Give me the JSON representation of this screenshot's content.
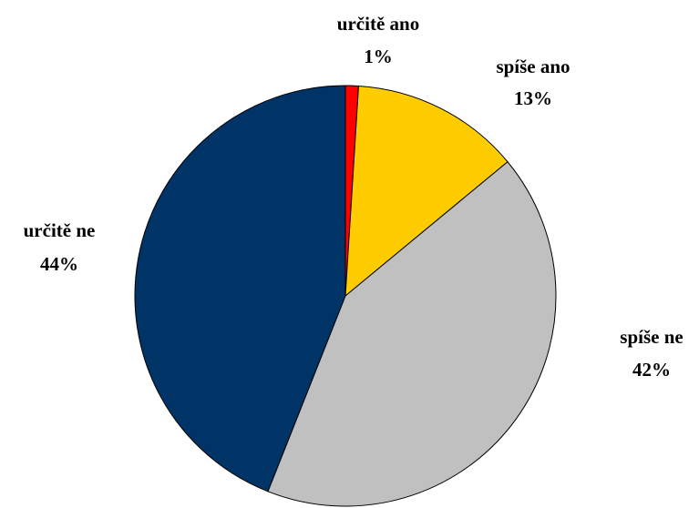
{
  "chart_data": {
    "type": "pie",
    "categories": [
      "určitě ano",
      "spíše ano",
      "spíše ne",
      "určitě ne"
    ],
    "values": [
      1,
      13,
      42,
      44
    ],
    "value_labels": [
      "1%",
      "13%",
      "42%",
      "44%"
    ],
    "colors": [
      "#ff0000",
      "#ffcc00",
      "#c0c0c0",
      "#003366"
    ]
  }
}
